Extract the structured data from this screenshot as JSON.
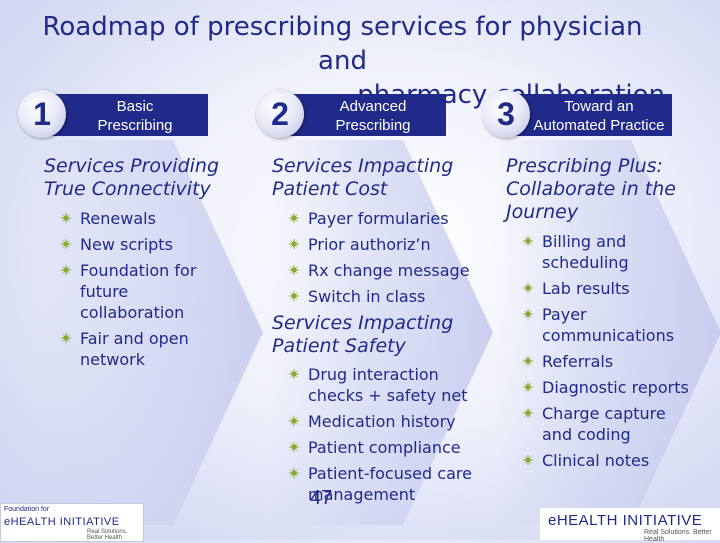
{
  "title": {
    "line1": "Roadmap of prescribing services for physician and",
    "line2": "pharmacy collaboration"
  },
  "columns": [
    {
      "number": "1",
      "label_line1": "Basic",
      "label_line2": "Prescribing",
      "heading_line1": "Services Providing",
      "heading_line2": "True Connectivity",
      "bullets": [
        [
          "Renewals"
        ],
        [
          "New scripts"
        ],
        [
          "Foundation for",
          "future",
          "collaboration"
        ],
        [
          "Fair and open",
          "network"
        ]
      ]
    },
    {
      "number": "2",
      "label_line1": "Advanced",
      "label_line2": "Prescribing",
      "heading_line1": "Services Impacting",
      "heading_line2": "Patient Cost",
      "bullets": [
        [
          "Payer formularies"
        ],
        [
          "Prior authoriz’n"
        ],
        [
          "Rx change message"
        ],
        [
          "Switch in class"
        ]
      ],
      "heading2_line1": "Services Impacting",
      "heading2_line2": "Patient Safety",
      "bullets2": [
        [
          "Drug interaction",
          "checks + safety net"
        ],
        [
          "Medication history"
        ],
        [
          "Patient compliance"
        ],
        [
          "Patient-focused care",
          "management"
        ]
      ]
    },
    {
      "number": "3",
      "label_line1": "Toward an",
      "label_line2": "Automated Practice",
      "heading_line1": "Prescribing Plus:",
      "heading_line2": "Collaborate in the",
      "heading_line3": "Journey",
      "bullets": [
        [
          "Billing and",
          "scheduling"
        ],
        [
          "Lab results"
        ],
        [
          "Payer",
          "communications"
        ],
        [
          "Referrals"
        ],
        [
          "Diagnostic reports"
        ],
        [
          "Charge capture",
          "and coding"
        ],
        [
          "Clinical notes"
        ]
      ]
    }
  ],
  "footer": {
    "page_number": "47",
    "logo_left_small": "Foundation for",
    "logo_left_main": "eHEALTH INITIATIVE",
    "logo_left_tag": "Real Solutions. Better Health",
    "logo_right_main": "eHEALTH INITIATIVE",
    "logo_right_tag": "Real Solutions. Better Health"
  },
  "colors": {
    "accent": "#1f2a8a",
    "bullet": "#8ca832"
  }
}
